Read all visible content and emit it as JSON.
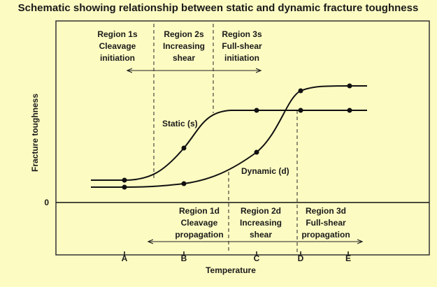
{
  "title": "Schematic showing relationship between static and dynamic fracture toughness",
  "axes": {
    "y_label": "Fracture toughness",
    "x_label": "Temperature",
    "zero_label": "0",
    "x_points": [
      "A",
      "B",
      "C",
      "D",
      "E"
    ]
  },
  "upper_regions": [
    {
      "lines": [
        "Region 1s",
        "Cleavage",
        "initiation"
      ]
    },
    {
      "lines": [
        "Region 2s",
        "Increasing",
        "shear"
      ]
    },
    {
      "lines": [
        "Region 3s",
        "Full-shear",
        "initiation"
      ]
    }
  ],
  "lower_regions": [
    {
      "lines": [
        "Region 1d",
        "Cleavage",
        "propagation"
      ]
    },
    {
      "lines": [
        "Region 2d",
        "Increasing",
        "shear"
      ]
    },
    {
      "lines": [
        "Region 3d",
        "Full-shear",
        "propagation"
      ]
    }
  ],
  "curves": {
    "static": "Static (s)",
    "dynamic": "Dynamic (d)"
  }
}
